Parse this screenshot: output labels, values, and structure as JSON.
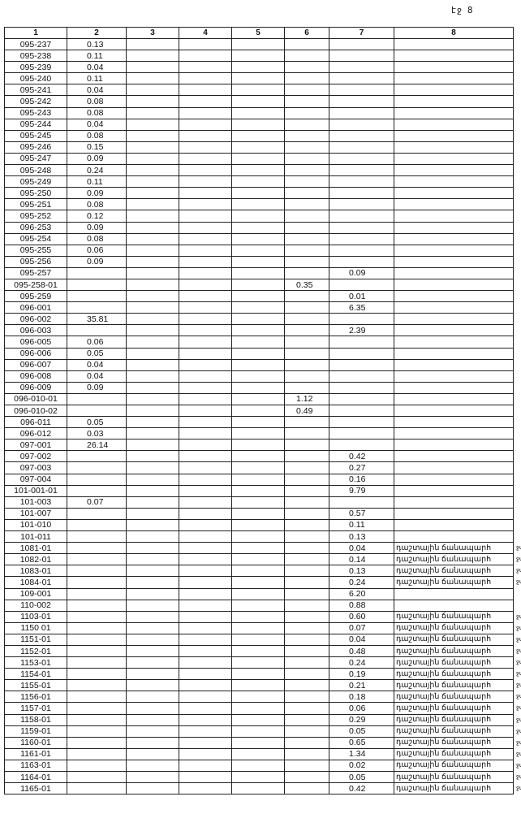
{
  "page_label": "էջ 8",
  "columns": [
    "1",
    "2",
    "3",
    "4",
    "5",
    "6",
    "7",
    "8"
  ],
  "rows": [
    [
      "095-237",
      "0.13",
      "",
      "",
      "",
      "",
      "",
      "",
      ""
    ],
    [
      "095-238",
      "0.11",
      "",
      "",
      "",
      "",
      "",
      "",
      ""
    ],
    [
      "095-239",
      "0.04",
      "",
      "",
      "",
      "",
      "",
      "",
      ""
    ],
    [
      "095-240",
      "0.11",
      "",
      "",
      "",
      "",
      "",
      "",
      ""
    ],
    [
      "095-241",
      "0.04",
      "",
      "",
      "",
      "",
      "",
      "",
      ""
    ],
    [
      "095-242",
      "0.08",
      "",
      "",
      "",
      "",
      "",
      "",
      ""
    ],
    [
      "095-243",
      "0.08",
      "",
      "",
      "",
      "",
      "",
      "",
      ""
    ],
    [
      "095-244",
      "0.04",
      "",
      "",
      "",
      "",
      "",
      "",
      ""
    ],
    [
      "095-245",
      "0.08",
      "",
      "",
      "",
      "",
      "",
      "",
      ""
    ],
    [
      "095-246",
      "0.15",
      "",
      "",
      "",
      "",
      "",
      "",
      ""
    ],
    [
      "095-247",
      "0.09",
      "",
      "",
      "",
      "",
      "",
      "",
      ""
    ],
    [
      "095-248",
      "0.24",
      "",
      "",
      "",
      "",
      "",
      "",
      ""
    ],
    [
      "095-249",
      "0.11",
      "",
      "",
      "",
      "",
      "",
      "",
      ""
    ],
    [
      "095-250",
      "0.09",
      "",
      "",
      "",
      "",
      "",
      "",
      ""
    ],
    [
      "095-251",
      "0.08",
      "",
      "",
      "",
      "",
      "",
      "",
      ""
    ],
    [
      "095-252",
      "0.12",
      "",
      "",
      "",
      "",
      "",
      "",
      ""
    ],
    [
      "096-253",
      "0.09",
      "",
      "",
      "",
      "",
      "",
      "",
      ""
    ],
    [
      "095-254",
      "0.08",
      "",
      "",
      "",
      "",
      "",
      "",
      ""
    ],
    [
      "095-255",
      "0.06",
      "",
      "",
      "",
      "",
      "",
      "",
      ""
    ],
    [
      "095-256",
      "0.09",
      "",
      "",
      "",
      "",
      "",
      "",
      ""
    ],
    [
      "095-257",
      "",
      "",
      "",
      "",
      "",
      "0.09",
      "",
      ""
    ],
    [
      "095-258-01",
      "",
      "",
      "",
      "",
      "0.35",
      "",
      "",
      ""
    ],
    [
      "095-259",
      "",
      "",
      "",
      "",
      "",
      "0.01",
      "",
      ""
    ],
    [
      "096-001",
      "",
      "",
      "",
      "",
      "",
      "6.35",
      "",
      ""
    ],
    [
      "096-002",
      "35.81",
      "",
      "",
      "",
      "",
      "",
      "",
      ""
    ],
    [
      "096-003",
      "",
      "",
      "",
      "",
      "",
      "2.39",
      "",
      ""
    ],
    [
      "096-005",
      "0.06",
      "",
      "",
      "",
      "",
      "",
      "",
      ""
    ],
    [
      "096-006",
      "0.05",
      "",
      "",
      "",
      "",
      "",
      "",
      ""
    ],
    [
      "096-007",
      "0.04",
      "",
      "",
      "",
      "",
      "",
      "",
      ""
    ],
    [
      "096-008",
      "0.04",
      "",
      "",
      "",
      "",
      "",
      "",
      ""
    ],
    [
      "096-009",
      "0.09",
      "",
      "",
      "",
      "",
      "",
      "",
      ""
    ],
    [
      "096-010-01",
      "",
      "",
      "",
      "",
      "1.12",
      "",
      "",
      ""
    ],
    [
      "096-010-02",
      "",
      "",
      "",
      "",
      "0.49",
      "",
      "",
      ""
    ],
    [
      "096-011",
      "0.05",
      "",
      "",
      "",
      "",
      "",
      "",
      ""
    ],
    [
      "096-012",
      "0.03",
      "",
      "",
      "",
      "",
      "",
      "",
      ""
    ],
    [
      "097-001",
      "26.14",
      "",
      "",
      "",
      "",
      "",
      "",
      ""
    ],
    [
      "097-002",
      "",
      "",
      "",
      "",
      "",
      "0.42",
      "",
      ""
    ],
    [
      "097-003",
      "",
      "",
      "",
      "",
      "",
      "0.27",
      "",
      ""
    ],
    [
      "097-004",
      "",
      "",
      "",
      "",
      "",
      "0.16",
      "",
      ""
    ],
    [
      "101-001-01",
      "",
      "",
      "",
      "",
      "",
      "9.79",
      "",
      ""
    ],
    [
      "101-003",
      "0.07",
      "",
      "",
      "",
      "",
      "",
      "",
      ""
    ],
    [
      "101-007",
      "",
      "",
      "",
      "",
      "",
      "0.57",
      "",
      ""
    ],
    [
      "101-010",
      "",
      "",
      "",
      "",
      "",
      "0.11",
      "",
      ""
    ],
    [
      "101-011",
      "",
      "",
      "",
      "",
      "",
      "0.13",
      "",
      ""
    ],
    [
      "1081-01",
      "",
      "",
      "",
      "",
      "",
      "0.04",
      "դաշտային ճանապարհ",
      "ջմ"
    ],
    [
      "1082-01",
      "",
      "",
      "",
      "",
      "",
      "0.14",
      "դաշտային ճանապարհ",
      "ջմ"
    ],
    [
      "1083-01",
      "",
      "",
      "",
      "",
      "",
      "0.13",
      "դաշտային ճանապարհ",
      "ջմ"
    ],
    [
      "1084-01",
      "",
      "",
      "",
      "",
      "",
      "0.24",
      "դաշտային ճանապարհ",
      "ջմ"
    ],
    [
      "109-001",
      "",
      "",
      "",
      "",
      "",
      "6.20",
      "",
      ""
    ],
    [
      "110-002",
      "",
      "",
      "",
      "",
      "",
      "0.88",
      "",
      ""
    ],
    [
      "1103-01",
      "",
      "",
      "",
      "",
      "",
      "0.60",
      "դաշտային ճանապարհ",
      "ջմ"
    ],
    [
      "1150 01",
      "",
      "",
      "",
      "",
      "",
      "0.07",
      "դաշտային ճանապարհ",
      "ջմ"
    ],
    [
      "1151-01",
      "",
      "",
      "",
      "",
      "",
      "0.04",
      "դաշտային ճանապարհ",
      "ջմ"
    ],
    [
      "1152-01",
      "",
      "",
      "",
      "",
      "",
      "0.48",
      "դաշտային ճանապարհ",
      "ջմ"
    ],
    [
      "1153-01",
      "",
      "",
      "",
      "",
      "",
      "0.24",
      "դաշտային ճանապարհ",
      "ջմ"
    ],
    [
      "1154-01",
      "",
      "",
      "",
      "",
      "",
      "0.19",
      "դաշտային ճանապարհ",
      "ջմ"
    ],
    [
      "1155-01",
      "",
      "",
      "",
      "",
      "",
      "0.21",
      "դաշտային ճանապարհ",
      "ջմ"
    ],
    [
      "1156-01",
      "",
      "",
      "",
      "",
      "",
      "0.18",
      "դաշտային ճանապարհ",
      "ջմ"
    ],
    [
      "1157-01",
      "",
      "",
      "",
      "",
      "",
      "0.06",
      "դաշտային ճանապարհ",
      "ջմ"
    ],
    [
      "1158-01",
      "",
      "",
      "",
      "",
      "",
      "0.29",
      "դաշտային ճանապարհ",
      "ջմ"
    ],
    [
      "1159-01",
      "",
      "",
      "",
      "",
      "",
      "0.05",
      "դաշտային ճանապարհ",
      "ջմ"
    ],
    [
      "1160-01",
      "",
      "",
      "",
      "",
      "",
      "0.65",
      "դաշտային ճանապարհ",
      "ջմ"
    ],
    [
      "1161-01",
      "",
      "",
      "",
      "",
      "",
      "1.34",
      "դաշտային ճանապարհ",
      "ջմ"
    ],
    [
      "1163-01",
      "",
      "",
      "",
      "",
      "",
      "0.02",
      "դաշտային ճանապարհ",
      "ջմ"
    ],
    [
      "1164-01",
      "",
      "",
      "",
      "",
      "",
      "0.05",
      "դաշտային ճանապարհ",
      "ջմ"
    ],
    [
      "1165-01",
      "",
      "",
      "",
      "",
      "",
      "0.42",
      "դաշտային ճանապարհ",
      "ջմ"
    ]
  ]
}
